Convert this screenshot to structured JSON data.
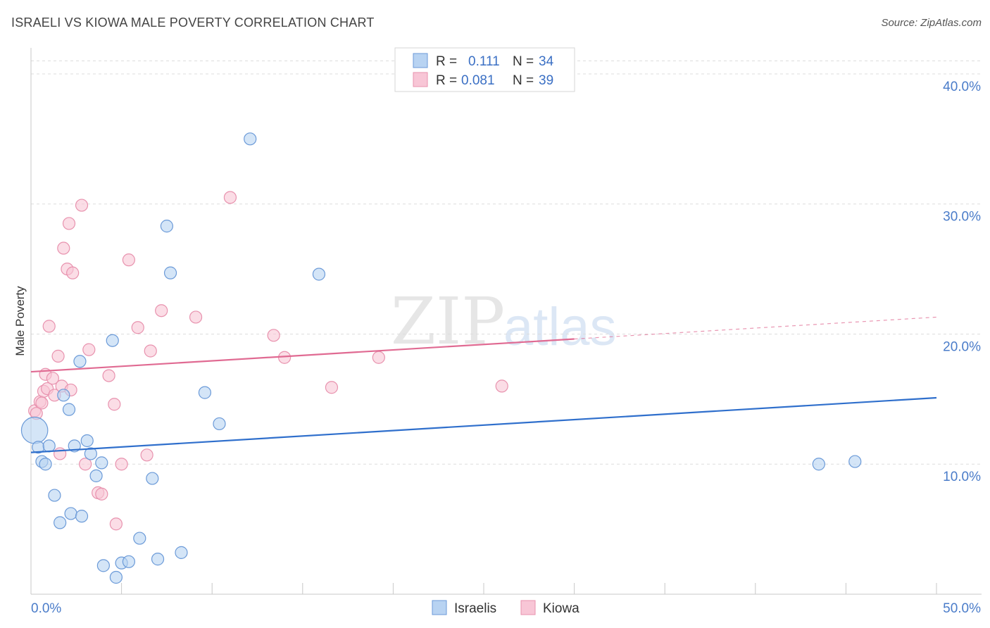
{
  "title": "ISRAELI VS KIOWA MALE POVERTY CORRELATION CHART",
  "source": "Source: ZipAtlas.com",
  "watermark": {
    "zip": "ZIP",
    "atlas": "atlas"
  },
  "colors": {
    "israeli_fill": "#b8d3f2",
    "israeli_stroke": "#6b9ad8",
    "israeli_line": "#2f6fcc",
    "kiowa_fill": "#f8c6d6",
    "kiowa_stroke": "#e892ae",
    "kiowa_line": "#e06a92",
    "tick_text": "#4a7cc9",
    "grid": "#dddddd"
  },
  "legend": {
    "israeli": {
      "r_label": "R =",
      "r_value": "0.111",
      "n_label": "N =",
      "n_value": "34"
    },
    "kiowa": {
      "r_label": "R =",
      "r_value": "0.081",
      "n_label": "N =",
      "n_value": "39"
    }
  },
  "chart_data": {
    "type": "scatter",
    "title": "ISRAELI VS KIOWA MALE POVERTY CORRELATION CHART",
    "xlabel": "",
    "ylabel": "Male Poverty",
    "xlim": [
      0,
      50
    ],
    "ylim": [
      0,
      42
    ],
    "x_tick_labels": [
      {
        "value": 0,
        "label": "0.0%"
      },
      {
        "value": 50,
        "label": "50.0%"
      }
    ],
    "y_tick_labels": [
      {
        "value": 10,
        "label": "10.0%"
      },
      {
        "value": 20,
        "label": "20.0%"
      },
      {
        "value": 30,
        "label": "30.0%"
      },
      {
        "value": 40,
        "label": "40.0%"
      }
    ],
    "x_minor_ticks": [
      0,
      5,
      10,
      15,
      20,
      25,
      30,
      35,
      40,
      45,
      50
    ],
    "series": [
      {
        "name": "Israelis",
        "r": 0.111,
        "n": 34,
        "trend": {
          "x": [
            0,
            50
          ],
          "y": [
            10.9,
            15.1
          ],
          "dashed_from": null
        },
        "points": [
          {
            "x": 0.2,
            "y": 12.6,
            "size": 2.2
          },
          {
            "x": 0.4,
            "y": 11.3
          },
          {
            "x": 0.6,
            "y": 10.2
          },
          {
            "x": 0.8,
            "y": 10.0
          },
          {
            "x": 1.0,
            "y": 11.4
          },
          {
            "x": 1.3,
            "y": 7.6
          },
          {
            "x": 1.6,
            "y": 5.5
          },
          {
            "x": 1.8,
            "y": 15.3
          },
          {
            "x": 2.1,
            "y": 14.2
          },
          {
            "x": 2.2,
            "y": 6.2
          },
          {
            "x": 2.4,
            "y": 11.4
          },
          {
            "x": 2.7,
            "y": 17.9
          },
          {
            "x": 2.8,
            "y": 6.0
          },
          {
            "x": 3.1,
            "y": 11.8
          },
          {
            "x": 3.3,
            "y": 10.8
          },
          {
            "x": 3.6,
            "y": 9.1
          },
          {
            "x": 3.9,
            "y": 10.1
          },
          {
            "x": 4.0,
            "y": 2.2
          },
          {
            "x": 4.5,
            "y": 19.5
          },
          {
            "x": 4.7,
            "y": 1.3
          },
          {
            "x": 5.0,
            "y": 2.4
          },
          {
            "x": 5.4,
            "y": 2.5
          },
          {
            "x": 6.0,
            "y": 4.3
          },
          {
            "x": 6.7,
            "y": 8.9
          },
          {
            "x": 7.0,
            "y": 2.7
          },
          {
            "x": 7.5,
            "y": 28.3
          },
          {
            "x": 7.7,
            "y": 24.7
          },
          {
            "x": 8.3,
            "y": 3.2
          },
          {
            "x": 9.6,
            "y": 15.5
          },
          {
            "x": 10.4,
            "y": 13.1
          },
          {
            "x": 12.1,
            "y": 35.0
          },
          {
            "x": 15.9,
            "y": 24.6
          },
          {
            "x": 43.5,
            "y": 10.0
          },
          {
            "x": 45.5,
            "y": 10.2
          }
        ]
      },
      {
        "name": "Kiowa",
        "r": 0.081,
        "n": 39,
        "trend": {
          "x": [
            0,
            50
          ],
          "y": [
            17.1,
            21.3
          ],
          "dashed_from": 30
        },
        "points": [
          {
            "x": 0.2,
            "y": 14.1
          },
          {
            "x": 0.3,
            "y": 13.9
          },
          {
            "x": 0.5,
            "y": 14.8
          },
          {
            "x": 0.6,
            "y": 14.7
          },
          {
            "x": 0.7,
            "y": 15.6
          },
          {
            "x": 0.8,
            "y": 16.9
          },
          {
            "x": 0.9,
            "y": 15.8
          },
          {
            "x": 1.0,
            "y": 20.6
          },
          {
            "x": 1.2,
            "y": 16.6
          },
          {
            "x": 1.3,
            "y": 15.3
          },
          {
            "x": 1.5,
            "y": 18.3
          },
          {
            "x": 1.6,
            "y": 10.8
          },
          {
            "x": 1.7,
            "y": 16.0
          },
          {
            "x": 1.8,
            "y": 26.6
          },
          {
            "x": 2.0,
            "y": 25.0
          },
          {
            "x": 2.1,
            "y": 28.5
          },
          {
            "x": 2.2,
            "y": 15.7
          },
          {
            "x": 2.3,
            "y": 24.7
          },
          {
            "x": 2.8,
            "y": 29.9
          },
          {
            "x": 3.0,
            "y": 10.0
          },
          {
            "x": 3.2,
            "y": 18.8
          },
          {
            "x": 3.7,
            "y": 7.8
          },
          {
            "x": 3.9,
            "y": 7.7
          },
          {
            "x": 4.3,
            "y": 16.8
          },
          {
            "x": 4.6,
            "y": 14.6
          },
          {
            "x": 4.7,
            "y": 5.4
          },
          {
            "x": 5.0,
            "y": 10.0
          },
          {
            "x": 5.4,
            "y": 25.7
          },
          {
            "x": 5.9,
            "y": 20.5
          },
          {
            "x": 6.4,
            "y": 10.7
          },
          {
            "x": 6.6,
            "y": 18.7
          },
          {
            "x": 7.2,
            "y": 21.8
          },
          {
            "x": 9.1,
            "y": 21.3
          },
          {
            "x": 11.0,
            "y": 30.5
          },
          {
            "x": 13.4,
            "y": 19.9
          },
          {
            "x": 14.0,
            "y": 18.2
          },
          {
            "x": 16.6,
            "y": 15.9
          },
          {
            "x": 19.2,
            "y": 18.2
          },
          {
            "x": 26.0,
            "y": 16.0
          }
        ]
      }
    ],
    "legend_position": "top-center"
  }
}
